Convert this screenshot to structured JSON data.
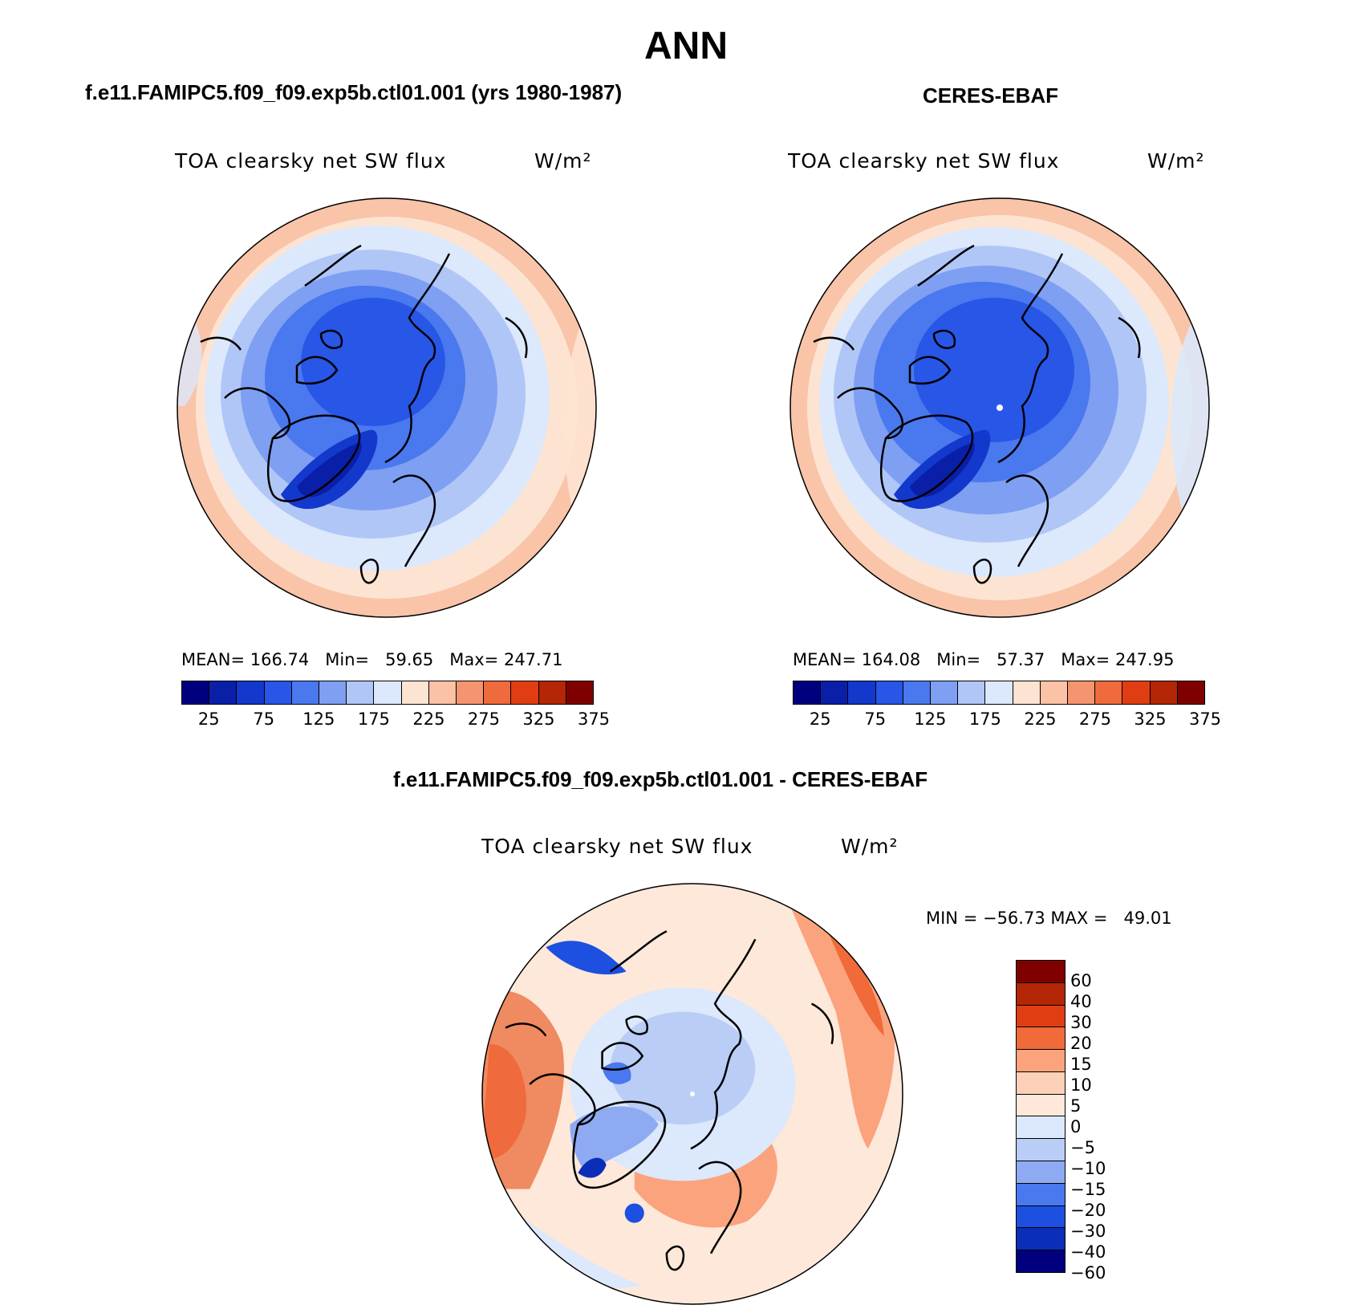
{
  "title": "ANN",
  "panels": [
    {
      "case": "f.e11.FAMIPC5.f09_f09.exp5b.ctl01.001 (yrs 1980-1987)",
      "variable": "TOA clearsky net SW flux",
      "units": "W/m²",
      "stats": "MEAN= 166.74   Min=   59.65   Max= 247.71",
      "colorbar": {
        "colors": [
          "#00007f",
          "#0a1fa8",
          "#1338cc",
          "#2856e6",
          "#4a78ee",
          "#7e9ff2",
          "#b0c6f7",
          "#dce8fb",
          "#fde4d2",
          "#fbc2a6",
          "#f59570",
          "#ef6a3c",
          "#e03e12",
          "#b32606",
          "#7f0000"
        ],
        "labels": [
          "25",
          "75",
          "125",
          "175",
          "225",
          "275",
          "325",
          "375"
        ]
      }
    },
    {
      "case": "CERES-EBAF",
      "variable": "TOA clearsky net SW flux",
      "units": "W/m²",
      "stats": "MEAN= 164.08   Min=   57.37   Max= 247.95",
      "colorbar": {
        "colors": [
          "#00007f",
          "#0a1fa8",
          "#1338cc",
          "#2856e6",
          "#4a78ee",
          "#7e9ff2",
          "#b0c6f7",
          "#dce8fb",
          "#fde4d2",
          "#fbc2a6",
          "#f59570",
          "#ef6a3c",
          "#e03e12",
          "#b32606",
          "#7f0000"
        ],
        "labels": [
          "25",
          "75",
          "125",
          "175",
          "225",
          "275",
          "325",
          "375"
        ]
      }
    },
    {
      "case": "f.e11.FAMIPC5.f09_f09.exp5b.ctl01.001 - CERES-EBAF",
      "variable": "TOA clearsky net SW flux",
      "units": "W/m²",
      "stats": "MIN = −56.73 MAX =   49.01",
      "colorbar": {
        "colors": [
          "#7f0000",
          "#b32606",
          "#e03e12",
          "#f06a3a",
          "#fba37d",
          "#fdd0b8",
          "#fde8da",
          "#dce8fb",
          "#b9cdf6",
          "#8eaaf2",
          "#4a78ee",
          "#1d4fe0",
          "#0a2eb8",
          "#00007f"
        ],
        "labels": [
          "60",
          "40",
          "30",
          "20",
          "15",
          "10",
          "5",
          "0",
          "−5",
          "−10",
          "−15",
          "−20",
          "−30",
          "−40",
          "−60"
        ]
      }
    }
  ]
}
